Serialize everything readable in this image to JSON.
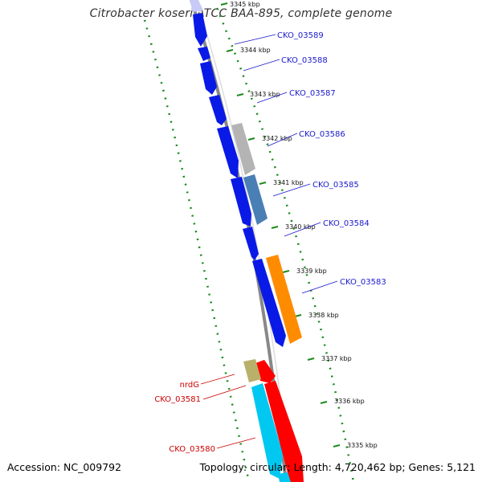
{
  "title": "Citrobacter koseri ATCC BAA-895, complete genome",
  "footer": {
    "accession": "Accession: NC_009792",
    "summary": "Topology: circular; Length: 4,720,462 bp; Genes: 5,121"
  },
  "colors": {
    "blue_gene": "#0a1ae6",
    "grey_gene": "#b4b4b4",
    "steelblue_gene": "#4a7fb5",
    "orange_gene": "#ff8c00",
    "red_gene": "#ff0000",
    "cyan_gene": "#00c8f0",
    "khaki_gene": "#b9b06a",
    "tick_green": "#1c8a1c",
    "label_blue": "#1a1acc",
    "label_red": "#cc0000",
    "backbone": "#888888"
  },
  "ticks": [
    {
      "label": "3345 kbp"
    },
    {
      "label": "3344 kbp"
    },
    {
      "label": "3343 kbp"
    },
    {
      "label": "3342 kbp"
    },
    {
      "label": "3341 kbp"
    },
    {
      "label": "3340 kbp"
    },
    {
      "label": "3339 kbp"
    },
    {
      "label": "3338 kbp"
    },
    {
      "label": "3337 kbp"
    },
    {
      "label": "3336 kbp"
    },
    {
      "label": "3335 kbp"
    }
  ],
  "gene_labels": [
    {
      "text": "CKO_03589",
      "color": "blue"
    },
    {
      "text": "CKO_03588",
      "color": "blue"
    },
    {
      "text": "CKO_03587",
      "color": "blue"
    },
    {
      "text": "CKO_03586",
      "color": "blue"
    },
    {
      "text": "CKO_03585",
      "color": "blue"
    },
    {
      "text": "CKO_03584",
      "color": "blue"
    },
    {
      "text": "CKO_03583",
      "color": "blue"
    },
    {
      "text": "nrdG",
      "color": "red"
    },
    {
      "text": "CKO_03581",
      "color": "red"
    },
    {
      "text": "CKO_03580",
      "color": "red"
    }
  ]
}
